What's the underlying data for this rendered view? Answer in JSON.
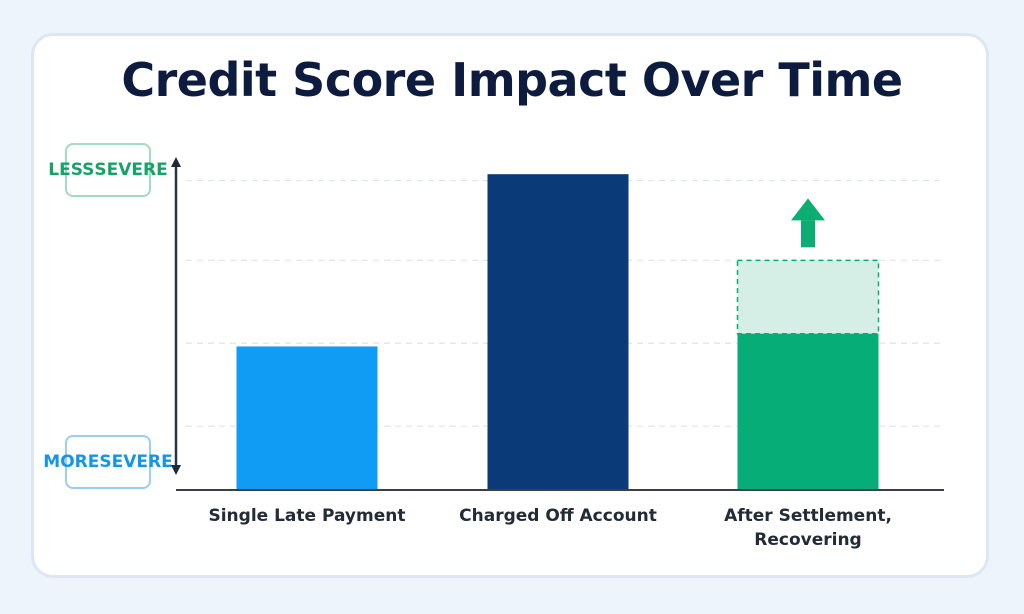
{
  "chart_data": {
    "type": "bar",
    "title": "Credit Score Impact Over Time",
    "axis_indicator": {
      "top_label": [
        "LESS",
        "SEVERE"
      ],
      "bottom_label": [
        "MORE",
        "SEVERE"
      ]
    },
    "categories": [
      "Single Late Payment",
      "Charged Off Account",
      "After Settlement, Recovering"
    ],
    "category_label_lines": [
      [
        "Single Late Payment"
      ],
      [
        "Charged Off Account"
      ],
      [
        "After Settlement,",
        "Recovering"
      ]
    ],
    "values": [
      4.5,
      9.9,
      4.9
    ],
    "recovery_potential": {
      "category": "After Settlement, Recovering",
      "from": 4.9,
      "to": 7.2,
      "style": "dashed, light fill",
      "arrow": "up"
    },
    "ylim": [
      0,
      10
    ],
    "yticks_hidden": true,
    "grid": true,
    "legend": "none",
    "colors": {
      "Single Late Payment": "#109cf4",
      "Charged Off Account": "#0a3b78",
      "After Settlement, Recovering": "#06ad76",
      "recovery_potential": "#d6efe6",
      "arrow": "#0cad72"
    }
  }
}
